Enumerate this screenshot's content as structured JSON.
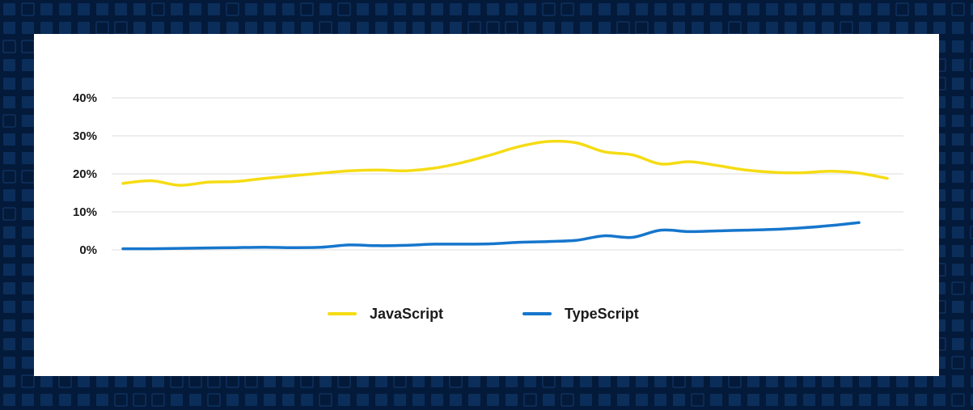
{
  "theme": {
    "background": "#041a3a",
    "tile": "#0b2d5a",
    "tile_light": "#123c70",
    "card": "#ffffff",
    "grid": "#dcdcdc",
    "text": "#1a1a1a"
  },
  "chart_data": {
    "type": "line",
    "title": "",
    "xlabel": "",
    "ylabel": "",
    "ylim": [
      0,
      40
    ],
    "y_ticks": [
      "0%",
      "10%",
      "20%",
      "30%",
      "40%"
    ],
    "y_tick_values": [
      0,
      10,
      20,
      30,
      40
    ],
    "grid": true,
    "legend_position": "bottom-center",
    "x": [
      0,
      1,
      2,
      3,
      4,
      5,
      6,
      7,
      8,
      9,
      10,
      11,
      12,
      13,
      14,
      15,
      16,
      17,
      18,
      19,
      20,
      21,
      22,
      23,
      24,
      25,
      26,
      27,
      28,
      29,
      30,
      31,
      32
    ],
    "series": [
      {
        "name": "JavaScript",
        "color": "#f5dc14",
        "values": [
          17.5,
          18.2,
          17.0,
          17.8,
          18.0,
          18.8,
          19.5,
          20.2,
          20.8,
          21.0,
          20.8,
          21.5,
          23.0,
          25.0,
          27.2,
          28.5,
          28.2,
          25.8,
          25.0,
          22.6,
          23.2,
          22.2,
          21.0,
          20.4,
          20.3,
          20.7,
          20.2,
          18.8,
          null,
          null,
          null,
          null,
          null
        ]
      },
      {
        "name": "TypeScript",
        "color": "#1676cc",
        "values": [
          0.3,
          0.3,
          0.4,
          0.5,
          0.6,
          0.7,
          0.6,
          0.7,
          1.3,
          1.1,
          1.2,
          1.5,
          1.5,
          1.6,
          2.0,
          2.2,
          2.5,
          3.7,
          3.3,
          5.2,
          4.8,
          5.0,
          5.2,
          5.4,
          5.8,
          6.4,
          7.2,
          null,
          null,
          null,
          null,
          null,
          null
        ]
      }
    ]
  }
}
